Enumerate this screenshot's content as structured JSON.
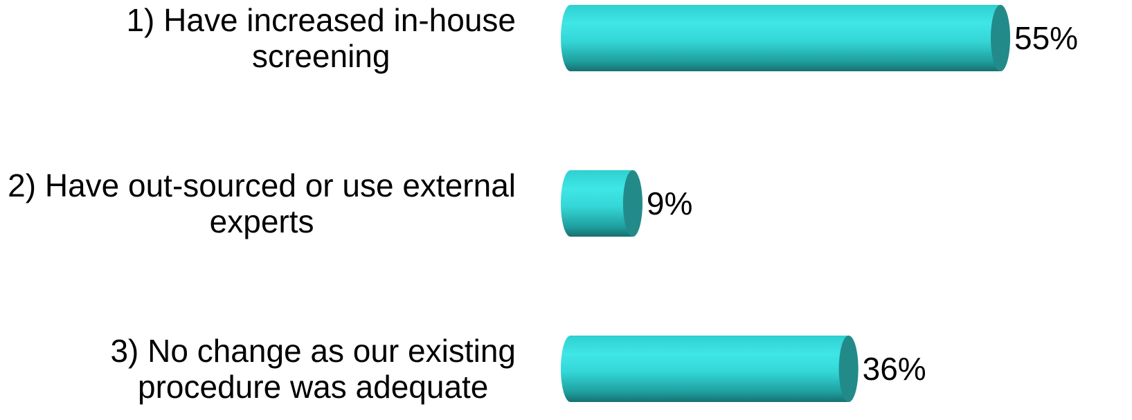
{
  "chart_data": {
    "type": "bar",
    "orientation": "horizontal",
    "categories": [
      [
        "1) Have increased in-house",
        "screening"
      ],
      [
        "2) Have out-sourced or use external",
        "experts"
      ],
      [
        "3) No change as our existing",
        "procedure was adequate"
      ]
    ],
    "values": [
      55,
      9,
      36
    ],
    "value_labels": [
      "55%",
      "9%",
      "36%"
    ],
    "unit": "%",
    "xlim": [
      0,
      55
    ],
    "bar_style": "3d-cylinder",
    "grid": false,
    "legend": "none"
  },
  "colors": {
    "bar_light": "#3fe6e6",
    "bar_mid": "#2cc8c8",
    "bar_dark": "#1a7f7f",
    "bar_end_cap": "#238a8a"
  }
}
